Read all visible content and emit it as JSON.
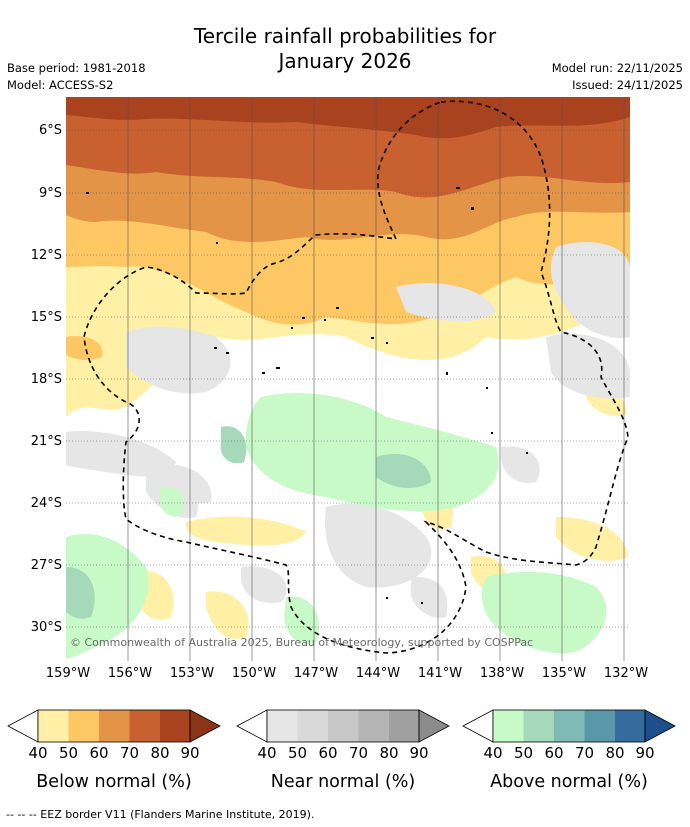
{
  "title_line1": "Tercile rainfall probabilities for",
  "title_line2": "January 2026",
  "base_period": "Base period: 1981-2018",
  "model": "Model: ACCESS-S2",
  "model_run": "Model run: 22/11/2025",
  "issued": "Issued: 24/11/2025",
  "lat_labels": [
    "6°S",
    "9°S",
    "12°S",
    "15°S",
    "18°S",
    "21°S",
    "24°S",
    "27°S",
    "30°S"
  ],
  "lon_labels": [
    "159°W",
    "156°W",
    "153°W",
    "150°W",
    "147°W",
    "144°W",
    "141°W",
    "138°W",
    "135°W",
    "132°W"
  ],
  "copyright": "© Commonwealth of Australia 2025, Bureau of Meteorology, supported by COSPPac",
  "colorbars": [
    {
      "label": "Below normal (%)",
      "ticks": [
        "40",
        "50",
        "60",
        "70",
        "80",
        "90"
      ],
      "colors": [
        "#fff0a6",
        "#fdc864",
        "#e39447",
        "#c8602f",
        "#a9421f",
        "#8c3418"
      ]
    },
    {
      "label": "Near normal (%)",
      "ticks": [
        "40",
        "50",
        "60",
        "70",
        "80",
        "90"
      ],
      "colors": [
        "#e6e6e6",
        "#d9d9d9",
        "#c8c8c8",
        "#b4b4b4",
        "#a0a0a0",
        "#8c8c8c"
      ]
    },
    {
      "label": "Above normal (%)",
      "ticks": [
        "40",
        "50",
        "60",
        "70",
        "80",
        "90"
      ],
      "colors": [
        "#c8fac8",
        "#a6d9b9",
        "#7fbab4",
        "#5a97a8",
        "#336b9e",
        "#1f4e8c"
      ]
    }
  ],
  "footer": "--  --  -- EEZ border V11 (Flanders Marine Institute, 2019)."
}
